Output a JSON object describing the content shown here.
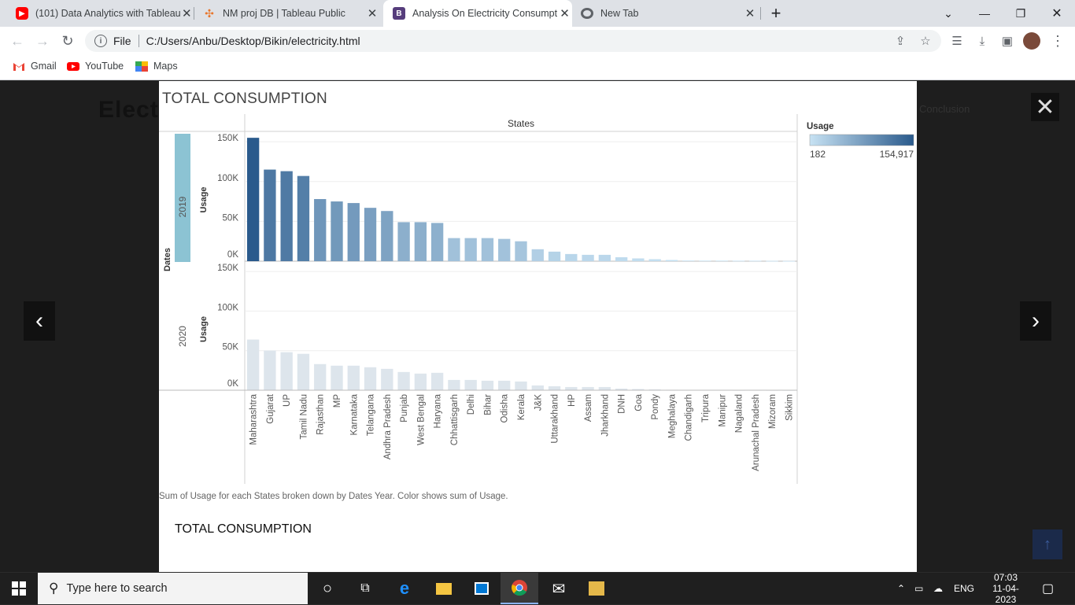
{
  "browser": {
    "tabs": [
      {
        "title": "(101) Data Analytics with Tableau",
        "icon": "youtube-icon",
        "color": "#ff0000"
      },
      {
        "title": "NM proj DB | Tableau Public",
        "icon": "tableau-icon",
        "color": "#e8762c"
      },
      {
        "title": "Analysis On Electricity Consumpt",
        "icon": "bootstrap-icon",
        "color": "#563d7c"
      },
      {
        "title": "New Tab",
        "icon": "chrome-icon",
        "color": "#5f6368"
      }
    ],
    "url_scheme": "File",
    "url": "C:/Users/Anbu/Desktop/Bikin/electricity.html",
    "bookmarks": [
      {
        "label": "Gmail",
        "icon": "gmail-icon"
      },
      {
        "label": "YouTube",
        "icon": "youtube-icon"
      },
      {
        "label": "Maps",
        "icon": "maps-icon"
      }
    ]
  },
  "background_page": {
    "title": "Elect",
    "nav_item": "Conclusion"
  },
  "modal": {
    "title": "TOTAL CONSUMPTION",
    "caption": "Sum of Usage for each States broken down by Dates Year.  Color shows sum of Usage.",
    "bottom_title": "TOTAL CONSUMPTION"
  },
  "chart_data": {
    "type": "bar",
    "title": "TOTAL CONSUMPTION",
    "column_header": "States",
    "row_header": "Dates",
    "ylabel": "Usage",
    "ylim": [
      0,
      160000
    ],
    "yticks": [
      "0K",
      "50K",
      "100K",
      "150K"
    ],
    "categories": [
      "Maharashtra",
      "Gujarat",
      "UP",
      "Tamil Nadu",
      "Rajasthan",
      "MP",
      "Karnataka",
      "Telangana",
      "Andhra Pradesh",
      "Punjab",
      "West Bengal",
      "Haryana",
      "Chhattisgarh",
      "Delhi",
      "Bihar",
      "Odisha",
      "Kerala",
      "J&K",
      "Uttarakhand",
      "HP",
      "Assam",
      "Jharkhand",
      "DNH",
      "Goa",
      "Pondy",
      "Meghalaya",
      "Chandigarh",
      "Tripura",
      "Manipur",
      "Nagaland",
      "Arunachal Pradesh",
      "Mizoram",
      "Sikkim"
    ],
    "series": [
      {
        "name": "2019",
        "values": [
          154917,
          115000,
          113000,
          107000,
          78000,
          75000,
          73000,
          67000,
          63000,
          49000,
          49000,
          48000,
          29000,
          29000,
          29000,
          28000,
          25000,
          15000,
          12000,
          9000,
          8000,
          8000,
          5000,
          3500,
          2500,
          1500,
          800,
          700,
          700,
          600,
          600,
          400,
          300
        ]
      },
      {
        "name": "2020",
        "values": [
          64000,
          50000,
          48000,
          46000,
          33000,
          31000,
          31000,
          29000,
          27000,
          23000,
          21000,
          22000,
          13000,
          13000,
          12000,
          12000,
          11000,
          6000,
          5000,
          4000,
          4000,
          4000,
          2000,
          1500,
          1000,
          600,
          300,
          300,
          300,
          200,
          250,
          200,
          182
        ]
      }
    ],
    "color_legend": {
      "title": "Usage",
      "min_label": "182",
      "max_label": "154,917",
      "min_color": "#c7e2f3",
      "max_color": "#2a5a8c"
    }
  },
  "taskbar": {
    "search_placeholder": "Type here to search",
    "language": "ENG",
    "time": "07:03",
    "date": "11-04-2023"
  }
}
